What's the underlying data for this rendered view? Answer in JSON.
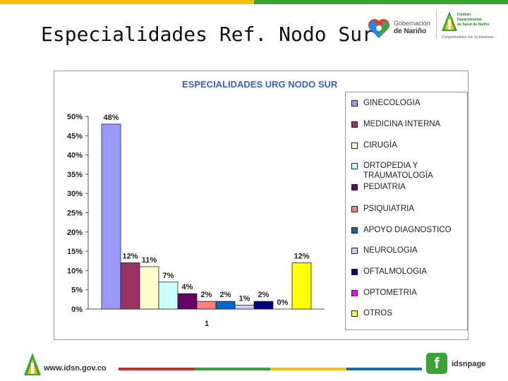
{
  "slide": {
    "title": "Especialidades Ref. Nodo Sur"
  },
  "logos": {
    "gobernacion_line1": "Gobernación",
    "gobernacion_line2": "de Nariño",
    "ids_line1": "Instituto",
    "ids_line2": "Departamental",
    "ids_line3": "de Salud de Nariño",
    "ids_tagline": "Comprometidos con su bienestar"
  },
  "chart_data": {
    "type": "bar",
    "title": "ESPECIALIDADES URG NODO SUR",
    "categories": [
      "1"
    ],
    "ylim": [
      0,
      50
    ],
    "yticks": [
      "0%",
      "5%",
      "10%",
      "15%",
      "20%",
      "25%",
      "30%",
      "35%",
      "40%",
      "45%",
      "50%"
    ],
    "grid": false,
    "legend_position": "right",
    "series": [
      {
        "name": "GINECOLOGIA",
        "value": 48,
        "label": "48%",
        "color": "#9999ff"
      },
      {
        "name": "MEDICINA INTERNA",
        "value": 12,
        "label": "12%",
        "color": "#993366"
      },
      {
        "name": "CIRUGÍA",
        "value": 11,
        "label": "11%",
        "color": "#ffffcc"
      },
      {
        "name": "ORTOPEDIA Y TRAUMATOLOGÍA",
        "value": 7,
        "label": "7%",
        "color": "#ccffff"
      },
      {
        "name": "PEDIATRIA",
        "value": 4,
        "label": "4%",
        "color": "#660066"
      },
      {
        "name": "PSIQUIATRIA",
        "value": 2,
        "label": "2%",
        "color": "#ff8080"
      },
      {
        "name": "APOYO DIAGNOSTICO",
        "value": 2,
        "label": "2%",
        "color": "#0066cc"
      },
      {
        "name": "NEUROLOGIA",
        "value": 1,
        "label": "1%",
        "color": "#ccccff"
      },
      {
        "name": "OFTALMOLOGIA",
        "value": 2,
        "label": "2%",
        "color": "#000080"
      },
      {
        "name": "OPTOMETRIA",
        "value": 0,
        "label": "0%",
        "color": "#ff00ff"
      },
      {
        "name": "OTROS",
        "value": 12,
        "label": "12%",
        "color": "#ffff00"
      }
    ]
  },
  "footer": {
    "url": "www.idsn.gov.co",
    "facebook_glyph": "f",
    "page_name": "idsnpage",
    "bar_colors": [
      "#d9272e",
      "#3aa335",
      "#f2c20f",
      "#1d6fb8"
    ]
  },
  "top_colors": [
    "#f2c20f",
    "#3aa335"
  ]
}
